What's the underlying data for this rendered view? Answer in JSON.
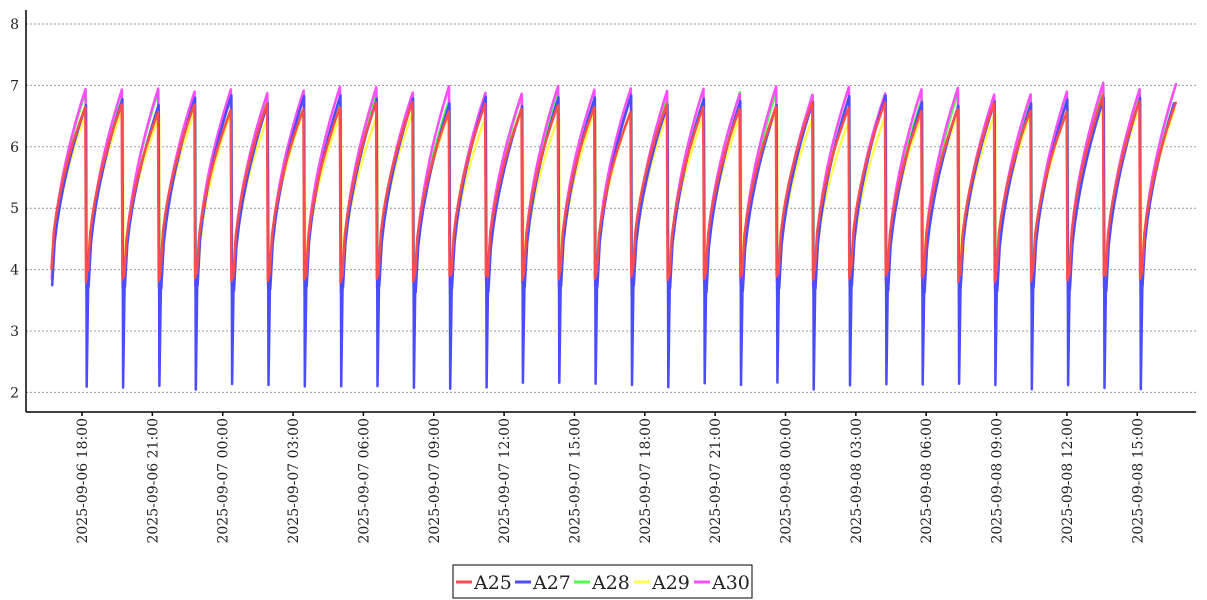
{
  "chart_data": {
    "type": "line",
    "title": "",
    "xlabel": "",
    "ylabel": "",
    "x_unit": "hours after 2025-09-06 18:00",
    "xlim_hours": [
      -2.2,
      23.4
    ],
    "ylim": [
      1.7,
      8.3
    ],
    "y_ticks": [
      2,
      3,
      4,
      5,
      6,
      7,
      8
    ],
    "x_ticks": [
      {
        "hour": 0,
        "label": "2025-09-06 18:00"
      },
      {
        "hour": 3,
        "label": "2025-09-06 21:00"
      },
      {
        "hour": 6,
        "label": "2025-09-07 00:00"
      },
      {
        "hour": 9,
        "label": "2025-09-07 03:00"
      },
      {
        "hour": 12,
        "label": "2025-09-07 06:00"
      },
      {
        "hour": 15,
        "label": "2025-09-07 09:00"
      },
      {
        "hour": 18,
        "label": "2025-09-07 12:00"
      },
      {
        "hour": 21,
        "label": "2025-09-07 15:00"
      },
      {
        "hour": 24,
        "label": "2025-09-07 18:00"
      },
      {
        "hour": 27,
        "label": "2025-09-07 21:00"
      },
      {
        "hour": 30,
        "label": "2025-09-08 00:00"
      },
      {
        "hour": 33,
        "label": "2025-09-08 03:00"
      },
      {
        "hour": 36,
        "label": "2025-09-08 06:00"
      },
      {
        "hour": 39,
        "label": "2025-09-08 09:00"
      },
      {
        "hour": 42,
        "label": "2025-09-08 12:00"
      },
      {
        "hour": 45,
        "label": "2025-09-08 15:00"
      }
    ],
    "grid": true,
    "legend_position": "bottom-center",
    "cycle_period_hours": 1.55,
    "series": [
      {
        "name": "A25",
        "color": "#ff4c4c"
      },
      {
        "name": "A27",
        "color": "#4c4cff"
      },
      {
        "name": "A28",
        "color": "#4cff4c"
      },
      {
        "name": "A29",
        "color": "#ffff4c"
      },
      {
        "name": "A30",
        "color": "#ff4cff"
      }
    ]
  }
}
